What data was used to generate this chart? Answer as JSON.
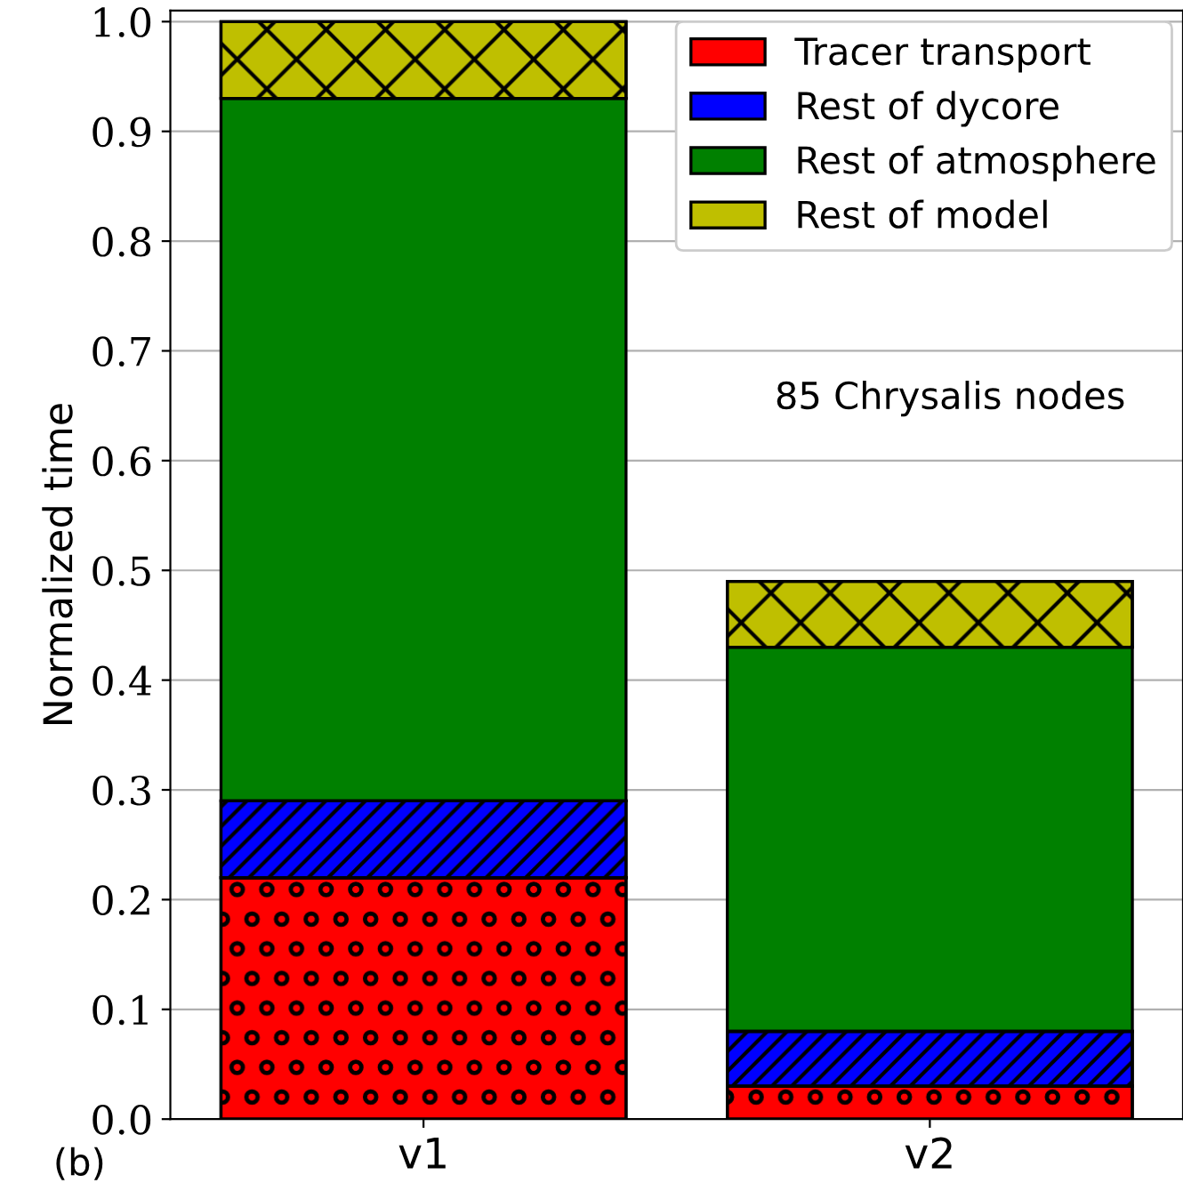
{
  "chart_data": {
    "type": "bar",
    "stacked": true,
    "categories": [
      "v1",
      "v2"
    ],
    "series": [
      {
        "name": "Tracer transport",
        "color": "#ff0000",
        "values": [
          0.22,
          0.03
        ]
      },
      {
        "name": "Rest of dycore",
        "color": "#0000ff",
        "values": [
          0.07,
          0.05
        ]
      },
      {
        "name": "Rest of atmosphere",
        "color": "#008000",
        "values": [
          0.64,
          0.35
        ]
      },
      {
        "name": "Rest of model",
        "color": "#bfbf00",
        "values": [
          0.07,
          0.06
        ]
      }
    ],
    "ylabel": "Normalized time",
    "ylim": [
      0,
      1.01
    ],
    "yticks": [
      {
        "value": 0,
        "label": "0.0"
      },
      0.1,
      0.2,
      0.3,
      0.4,
      0.5,
      0.6,
      0.7,
      0.8,
      0.9,
      {
        "value": 1,
        "label": "1.0"
      }
    ],
    "grid": "y",
    "legend": "top right",
    "annotations": [
      {
        "text": "85 Chrysalis nodes"
      },
      {
        "text": "(b)"
      }
    ]
  }
}
